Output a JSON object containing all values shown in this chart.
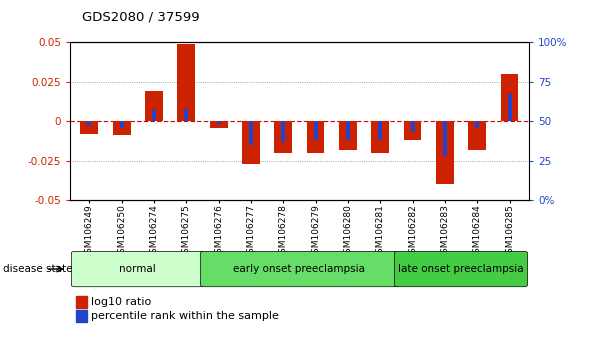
{
  "title": "GDS2080 / 37599",
  "samples": [
    "GSM106249",
    "GSM106250",
    "GSM106274",
    "GSM106275",
    "GSM106276",
    "GSM106277",
    "GSM106278",
    "GSM106279",
    "GSM106280",
    "GSM106281",
    "GSM106282",
    "GSM106283",
    "GSM106284",
    "GSM106285"
  ],
  "log10_ratio": [
    -0.008,
    -0.009,
    0.019,
    0.049,
    -0.004,
    -0.027,
    -0.02,
    -0.02,
    -0.018,
    -0.02,
    -0.012,
    -0.04,
    -0.018,
    0.03
  ],
  "percentile_rank": [
    47,
    46,
    57,
    58,
    48,
    35,
    37,
    38,
    38,
    38,
    43,
    28,
    46,
    67
  ],
  "ylim_left": [
    -0.05,
    0.05
  ],
  "ylim_right": [
    0,
    100
  ],
  "yticks_left": [
    -0.05,
    -0.025,
    0,
    0.025,
    0.05
  ],
  "yticks_right": [
    0,
    25,
    50,
    75,
    100
  ],
  "left_tick_labels": [
    "-0.05",
    "-0.025",
    "0",
    "0.025",
    "0.05"
  ],
  "right_tick_labels": [
    "0%",
    "25",
    "50",
    "75",
    "100%"
  ],
  "groups": [
    {
      "label": "normal",
      "start": 0,
      "end": 4,
      "color": "#ccffcc"
    },
    {
      "label": "early onset preeclampsia",
      "start": 4,
      "end": 10,
      "color": "#66dd66"
    },
    {
      "label": "late onset preeclampsia",
      "start": 10,
      "end": 14,
      "color": "#44cc44"
    }
  ],
  "disease_state_label": "disease state",
  "bar_color_red": "#cc2200",
  "bar_color_blue": "#2244cc",
  "legend_items": [
    "log10 ratio",
    "percentile rank within the sample"
  ],
  "zero_line_color": "#cc0000",
  "bar_width": 0.55,
  "blue_bar_width": 0.12
}
